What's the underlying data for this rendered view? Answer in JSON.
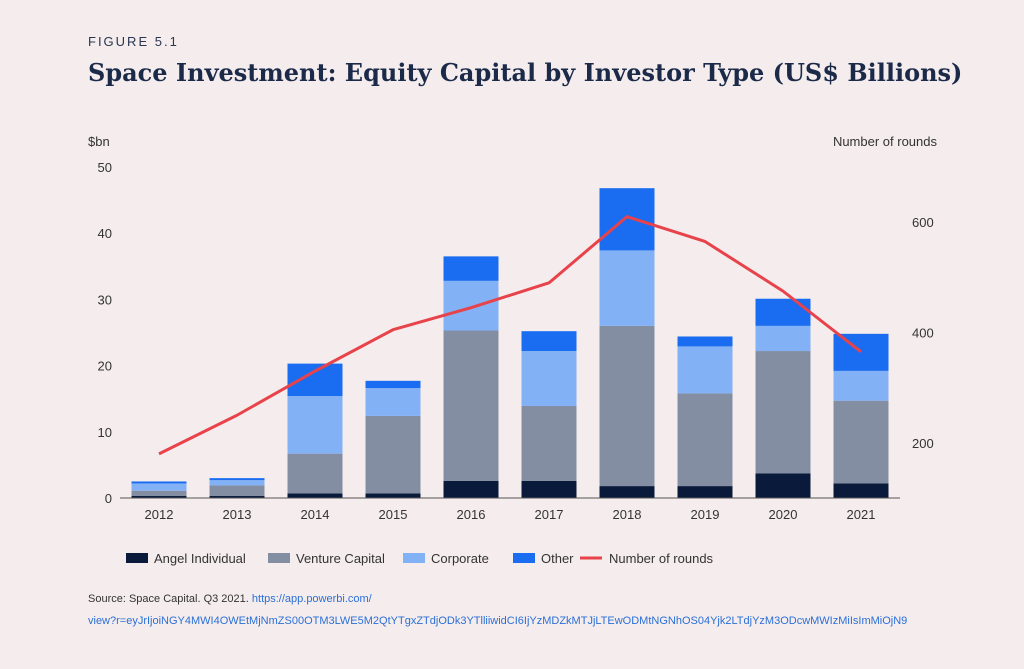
{
  "figure_label": "FIGURE 5.1",
  "title": "Space Investment: Equity Capital by Investor Type (US$ Billions)",
  "source": {
    "text": "Source: Space Capital. Q3 2021.",
    "link_line1": "https://app.powerbi.com/",
    "link_line2": "view?r=eyJrIjoiNGY4MWI4OWEtMjNmZS00OTM3LWE5M2QtYTgxZTdjODk3YTlliiwidCI6IjYzMDZkMTJjLTEwODMtNGNhOS04Yjk2LTdjYzM3ODcwMWIzMiIsImMiOjN9"
  },
  "chart_data": {
    "type": "bar",
    "stacked": true,
    "categories": [
      "2012",
      "2013",
      "2014",
      "2015",
      "2016",
      "2017",
      "2018",
      "2019",
      "2020",
      "2021"
    ],
    "ylabel": "$bn",
    "y2label": "Number of rounds",
    "ylim": [
      0,
      50
    ],
    "yticks": [
      0,
      10,
      20,
      30,
      40,
      50
    ],
    "y2lim": [
      100,
      700
    ],
    "y2ticks": [
      200,
      400,
      600
    ],
    "grid": false,
    "legend_position": "bottom",
    "series": [
      {
        "name": "Angel Individual",
        "color": "#0a1a3a",
        "values": [
          0.3,
          0.3,
          0.7,
          0.7,
          2.6,
          2.6,
          1.8,
          1.8,
          3.7,
          2.2
        ]
      },
      {
        "name": "Venture Capital",
        "color": "#838ea3",
        "values": [
          0.8,
          1.6,
          6.0,
          11.7,
          22.7,
          11.3,
          24.2,
          14.0,
          18.5,
          12.5
        ]
      },
      {
        "name": "Corporate",
        "color": "#82b1f5",
        "values": [
          1.1,
          0.8,
          8.7,
          4.2,
          7.5,
          8.3,
          11.4,
          7.1,
          3.8,
          4.5
        ]
      },
      {
        "name": "Other",
        "color": "#1a6df0",
        "values": [
          0.3,
          0.3,
          4.9,
          1.1,
          3.7,
          3.0,
          9.4,
          1.5,
          4.1,
          5.6
        ]
      }
    ],
    "line": {
      "name": "Number of rounds",
      "color": "#e8424a",
      "values": [
        180,
        250,
        330,
        405,
        445,
        490,
        610,
        565,
        475,
        365
      ]
    }
  }
}
